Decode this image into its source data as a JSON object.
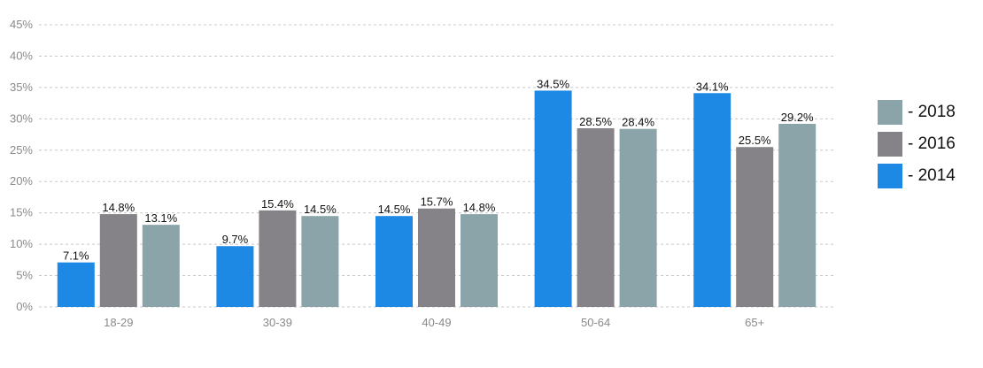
{
  "chart_data": {
    "type": "bar",
    "categories": [
      "18-29",
      "30-39",
      "40-49",
      "50-64",
      "65+"
    ],
    "series": [
      {
        "name": "2014",
        "color": "#1e88e5",
        "values": [
          7.1,
          9.7,
          14.5,
          34.5,
          34.1
        ],
        "labels": [
          "7.1%",
          "9.7%",
          "14.5%",
          "34.5%",
          "34.1%"
        ]
      },
      {
        "name": "2016",
        "color": "#858387",
        "values": [
          14.8,
          15.4,
          15.7,
          28.5,
          25.5
        ],
        "labels": [
          "14.8%",
          "15.4%",
          "15.7%",
          "28.5%",
          "25.5%"
        ]
      },
      {
        "name": "2018",
        "color": "#8ba4aa",
        "values": [
          13.1,
          14.5,
          14.8,
          28.4,
          29.2
        ],
        "labels": [
          "13.1%",
          "14.5%",
          "14.8%",
          "28.4%",
          "29.2%"
        ]
      }
    ],
    "yticks": [
      "0%",
      "5%",
      "10%",
      "15%",
      "20%",
      "25%",
      "30%",
      "35%",
      "40%",
      "45%"
    ],
    "ylim": [
      0,
      45
    ],
    "grid": true,
    "legend_position": "right"
  },
  "legend": {
    "items": [
      {
        "label": "- 2018",
        "color": "#8ba4aa"
      },
      {
        "label": "- 2016",
        "color": "#858387"
      },
      {
        "label": "- 2014",
        "color": "#1e88e5"
      }
    ]
  }
}
